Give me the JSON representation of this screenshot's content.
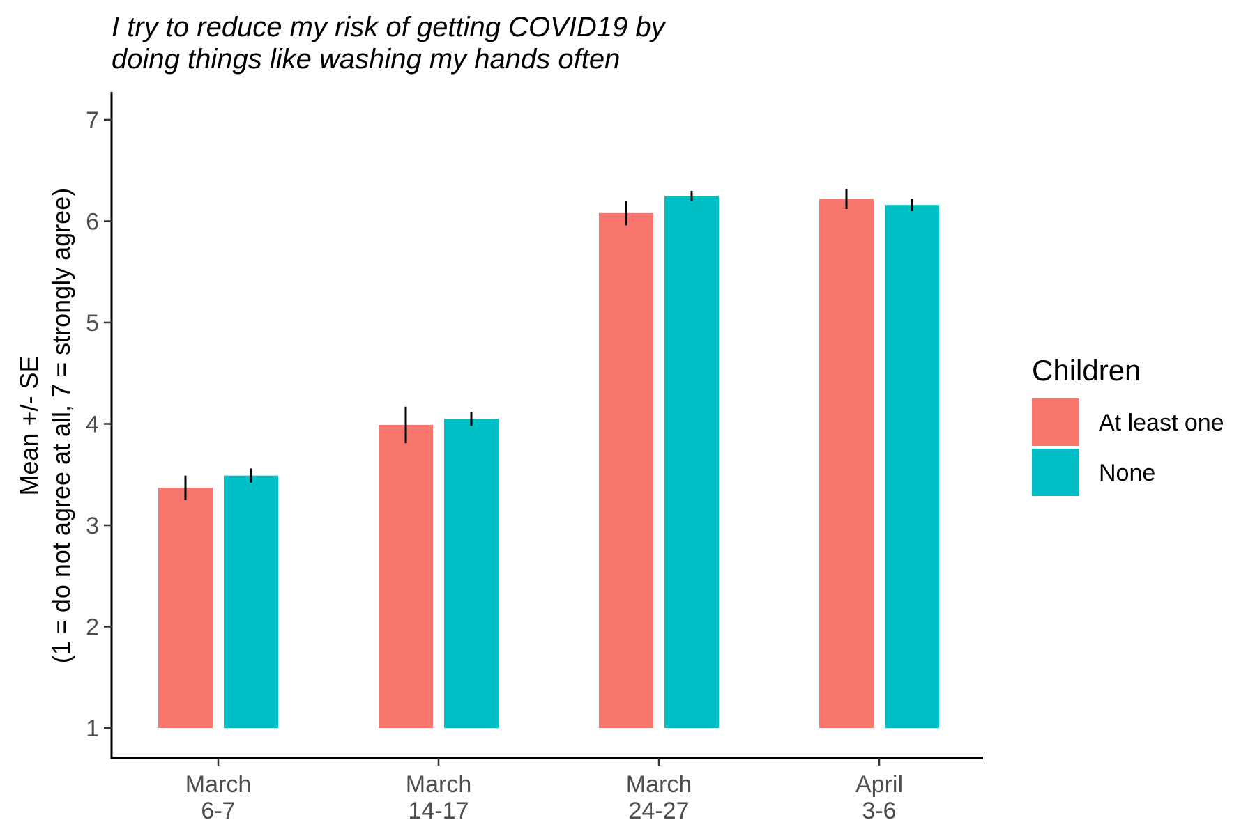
{
  "chart_data": {
    "type": "bar",
    "title_lines": [
      "I try to reduce my risk of getting COVID19 by",
      "doing things like washing my hands often"
    ],
    "ylabel_lines": [
      "Mean +/- SE",
      "(1 = do not agree at all, 7 = strongly agree)"
    ],
    "xlabel": "",
    "categories": [
      [
        "March",
        "6-7"
      ],
      [
        "March",
        "14-17"
      ],
      [
        "March",
        "24-27"
      ],
      [
        "April",
        "3-6"
      ]
    ],
    "ylim": [
      1,
      7
    ],
    "bar_base": 1,
    "yticks": [
      1,
      2,
      3,
      4,
      5,
      6,
      7
    ],
    "grid": false,
    "legend": {
      "title": "Children",
      "position": "right"
    },
    "series": [
      {
        "name": "At least one",
        "color": "#F8766D",
        "values": [
          3.37,
          3.99,
          6.08,
          6.22
        ],
        "se": [
          0.12,
          0.18,
          0.12,
          0.1
        ]
      },
      {
        "name": "None",
        "color": "#00BFC4",
        "values": [
          3.49,
          4.05,
          6.25,
          6.16
        ],
        "se": [
          0.07,
          0.07,
          0.05,
          0.06
        ]
      }
    ]
  }
}
